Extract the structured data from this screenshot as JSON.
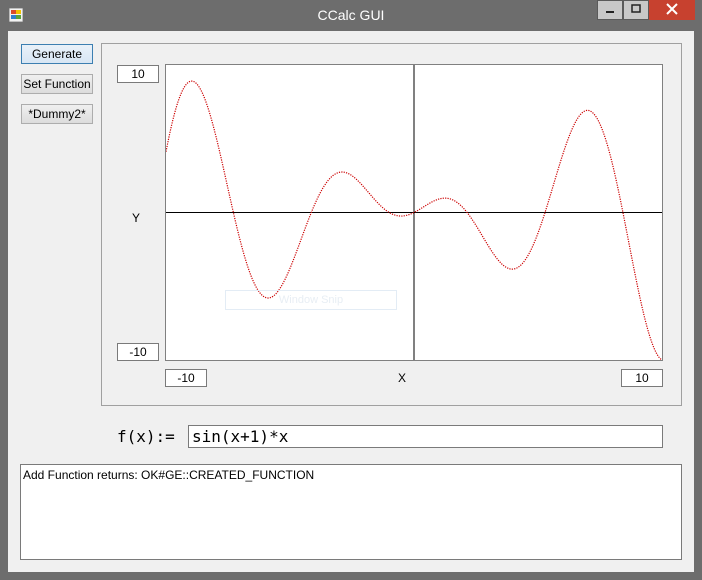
{
  "window": {
    "title": "CCalc GUI"
  },
  "toolbar": {
    "generate_label": "Generate",
    "set_function_label": "Set Function",
    "dummy2_label": "*Dummy2*"
  },
  "plot": {
    "y_max": "10",
    "y_min": "-10",
    "x_min": "-10",
    "x_max": "10",
    "y_axis_label": "Y",
    "x_axis_label": "X",
    "curve_color": "#cc0000"
  },
  "overlay": {
    "ghost_text": "Window Snip"
  },
  "function": {
    "label": "f(x):=",
    "value": "sin(x+1)*x"
  },
  "output": {
    "text": "Add Function returns: OK#GE::CREATED_FUNCTION"
  },
  "chart_data": {
    "type": "line",
    "series": [
      {
        "expression": "sin(x+1)*x"
      }
    ],
    "xlim": [
      -10,
      10
    ],
    "ylim": [
      -10,
      10
    ],
    "xlabel": "X",
    "ylabel": "Y",
    "grid": false
  }
}
